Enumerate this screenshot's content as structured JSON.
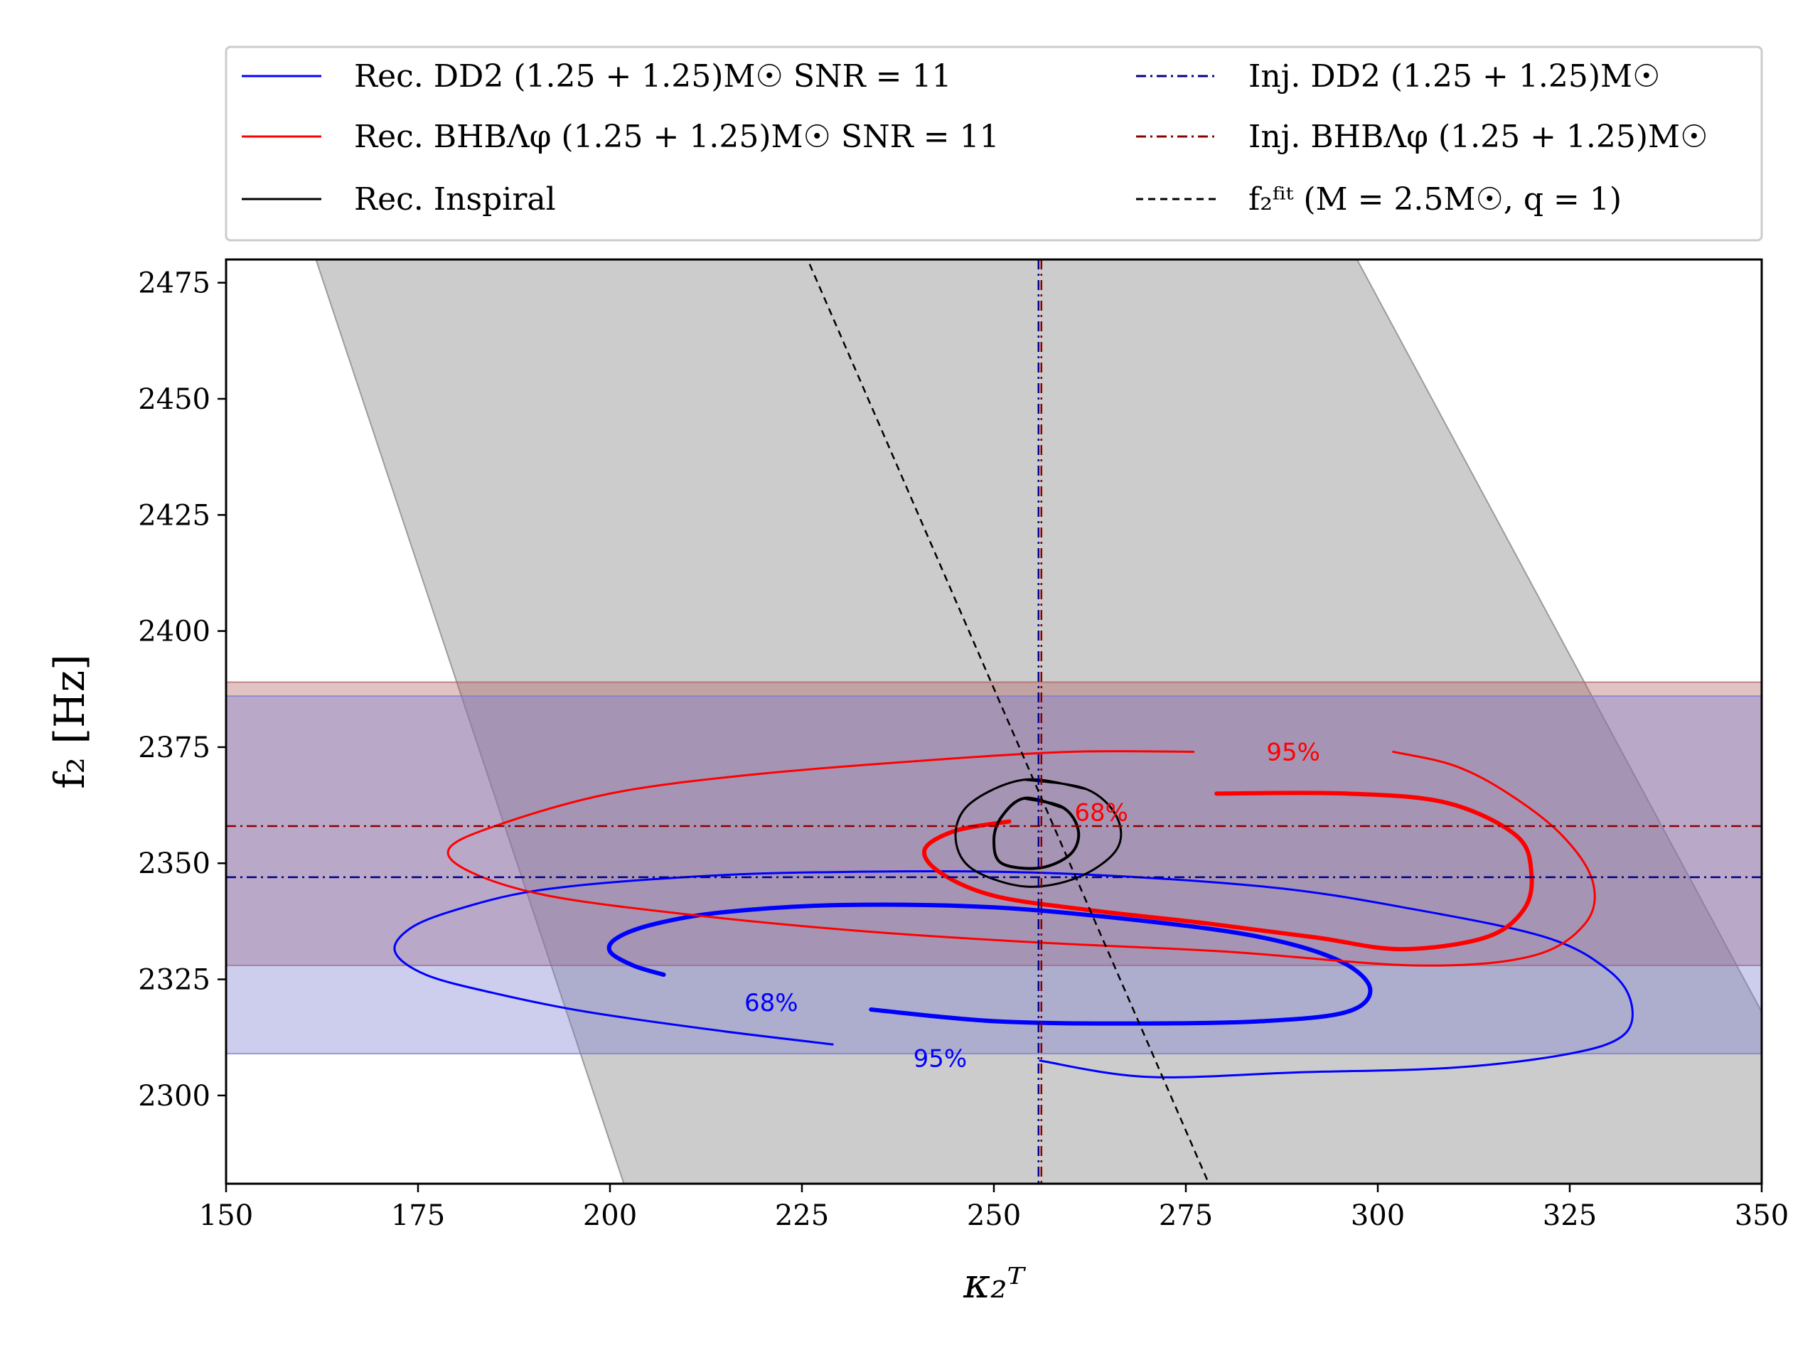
{
  "chart_data": {
    "type": "contour",
    "title": "",
    "xlabel": "κ₂ᵀ",
    "ylabel": "f₂ [Hz]",
    "xlim": [
      150,
      350
    ],
    "ylim": [
      2281,
      2480
    ],
    "xticks": [
      150,
      175,
      200,
      225,
      250,
      275,
      300,
      325,
      350
    ],
    "yticks": [
      2300,
      2325,
      2350,
      2375,
      2400,
      2425,
      2450,
      2475
    ],
    "colors": {
      "dd2": "#0000ff",
      "bhb": "#ff0000",
      "inspiral": "#000000",
      "inj_dd2": "#00008b",
      "inj_bhb": "#8b0000",
      "fit_band": "#808080",
      "dd2_band": "#7b7bd0",
      "bhb_band": "#b06060"
    },
    "legend": {
      "location": "top, above plot, two columns",
      "entries": [
        {
          "id": "rec-dd2",
          "label": "Rec. DD2 (1.25 + 1.25)M☉  SNR = 11",
          "style": "solid",
          "color": "#0000ff"
        },
        {
          "id": "rec-bhb",
          "label": "Rec. BHBΛφ (1.25 + 1.25)M☉  SNR = 11",
          "style": "solid",
          "color": "#ff0000"
        },
        {
          "id": "rec-inspiral",
          "label": "Rec. Inspiral",
          "style": "solid",
          "color": "#000000"
        },
        {
          "id": "inj-dd2",
          "label": "Inj. DD2 (1.25 + 1.25)M☉",
          "style": "dashdot",
          "color": "#00008b"
        },
        {
          "id": "inj-bhb",
          "label": "Inj. BHBΛφ (1.25 + 1.25)M☉",
          "style": "dashdot",
          "color": "#8b0000"
        },
        {
          "id": "fit",
          "label": "f₂ᶠⁱᵗ (M = 2.5M☉, q = 1)",
          "style": "dashed",
          "color": "#000000"
        }
      ]
    },
    "injections": {
      "kappa_T": 256,
      "f2_dd2": 2347,
      "f2_bhb": 2358
    },
    "fit_line": {
      "points": [
        [
          226,
          2479
        ],
        [
          278,
          2281
        ]
      ]
    },
    "fit_band": {
      "polygon": [
        [
          161.7,
          2480
        ],
        [
          297.3,
          2480
        ],
        [
          350,
          2318
        ],
        [
          350,
          2281
        ],
        [
          201.8,
          2281
        ]
      ]
    },
    "horizontal_bands": [
      {
        "name": "BHBΛφ f₂ 90% band",
        "y_low": 2328,
        "y_high": 2389,
        "color": "#b06060"
      },
      {
        "name": "DD2 f₂ 90% band",
        "y_low": 2309,
        "y_high": 2386,
        "color": "#7b7bd0"
      }
    ],
    "contours": [
      {
        "series": "DD2",
        "level": "95%",
        "width": "thin",
        "points": [
          [
            229,
            2311
          ],
          [
            214,
            2314
          ],
          [
            197,
            2318
          ],
          [
            185,
            2322
          ],
          [
            176,
            2326
          ],
          [
            172,
            2331
          ],
          [
            174,
            2336
          ],
          [
            180,
            2340
          ],
          [
            190,
            2344
          ],
          [
            205,
            2346.5
          ],
          [
            225,
            2348
          ],
          [
            255,
            2348
          ],
          [
            285,
            2345
          ],
          [
            305,
            2340
          ],
          [
            322,
            2334
          ],
          [
            330,
            2327
          ],
          [
            333,
            2320
          ],
          [
            332,
            2313
          ],
          [
            325,
            2309
          ],
          [
            310,
            2306
          ],
          [
            290,
            2305
          ],
          [
            270,
            2304
          ],
          [
            256,
            2307.5
          ]
        ]
      },
      {
        "series": "DD2",
        "level": "68%",
        "width": "thick",
        "points": [
          [
            207,
            2326
          ],
          [
            203,
            2328
          ],
          [
            200,
            2331
          ],
          [
            201,
            2334
          ],
          [
            206,
            2337
          ],
          [
            215,
            2339.5
          ],
          [
            230,
            2341
          ],
          [
            250,
            2340.5
          ],
          [
            270,
            2337.5
          ],
          [
            285,
            2334
          ],
          [
            295,
            2329
          ],
          [
            299,
            2323
          ],
          [
            296,
            2318
          ],
          [
            285,
            2316
          ],
          [
            268,
            2315.5
          ],
          [
            250,
            2316
          ],
          [
            234,
            2318.5
          ]
        ]
      },
      {
        "series": "BHBΛφ",
        "level": "95%",
        "width": "thin",
        "points": [
          [
            276,
            2374
          ],
          [
            260,
            2374
          ],
          [
            240,
            2372
          ],
          [
            218,
            2369
          ],
          [
            200,
            2365
          ],
          [
            185,
            2358
          ],
          [
            179,
            2353
          ],
          [
            182,
            2348
          ],
          [
            192,
            2343
          ],
          [
            210,
            2339
          ],
          [
            232,
            2335.5
          ],
          [
            255,
            2333
          ],
          [
            280,
            2331
          ],
          [
            305,
            2328
          ],
          [
            320,
            2330
          ],
          [
            327,
            2337
          ],
          [
            328,
            2346
          ],
          [
            324,
            2356
          ],
          [
            317,
            2365
          ],
          [
            310,
            2371
          ],
          [
            302,
            2374
          ]
        ]
      },
      {
        "series": "BHBΛφ",
        "level": "68%",
        "width": "thick",
        "points": [
          [
            279,
            2365
          ],
          [
            296,
            2365
          ],
          [
            309,
            2363
          ],
          [
            318,
            2356
          ],
          [
            320,
            2348
          ],
          [
            319,
            2340
          ],
          [
            314,
            2334
          ],
          [
            303,
            2331.5
          ],
          [
            292,
            2334
          ],
          [
            278,
            2337
          ],
          [
            262,
            2340
          ],
          [
            250,
            2343
          ],
          [
            243,
            2348
          ],
          [
            241,
            2353
          ],
          [
            245,
            2357
          ],
          [
            252,
            2359
          ]
        ]
      },
      {
        "series": "Inspiral",
        "level": "95%",
        "width": "thin",
        "points": [
          [
            254,
            2368
          ],
          [
            262,
            2366
          ],
          [
            266,
            2360
          ],
          [
            266,
            2353
          ],
          [
            261,
            2347
          ],
          [
            254,
            2345
          ],
          [
            247,
            2349
          ],
          [
            245,
            2356
          ],
          [
            247,
            2363
          ]
        ]
      },
      {
        "series": "Inspiral",
        "level": "68%",
        "width": "medium",
        "points": [
          [
            254,
            2364
          ],
          [
            259,
            2362
          ],
          [
            261,
            2357
          ],
          [
            260,
            2352
          ],
          [
            256,
            2349
          ],
          [
            251,
            2350
          ],
          [
            250,
            2355
          ],
          [
            251,
            2360
          ]
        ]
      }
    ],
    "contour_labels": [
      {
        "text": "95%",
        "x": 289,
        "y": 2374,
        "color": "#ff0000"
      },
      {
        "text": "68%",
        "x": 264,
        "y": 2361,
        "color": "#ff0000"
      },
      {
        "text": "68%",
        "x": 221,
        "y": 2320,
        "color": "#0000ff"
      },
      {
        "text": "95%",
        "x": 243,
        "y": 2308,
        "color": "#0000ff"
      }
    ]
  }
}
